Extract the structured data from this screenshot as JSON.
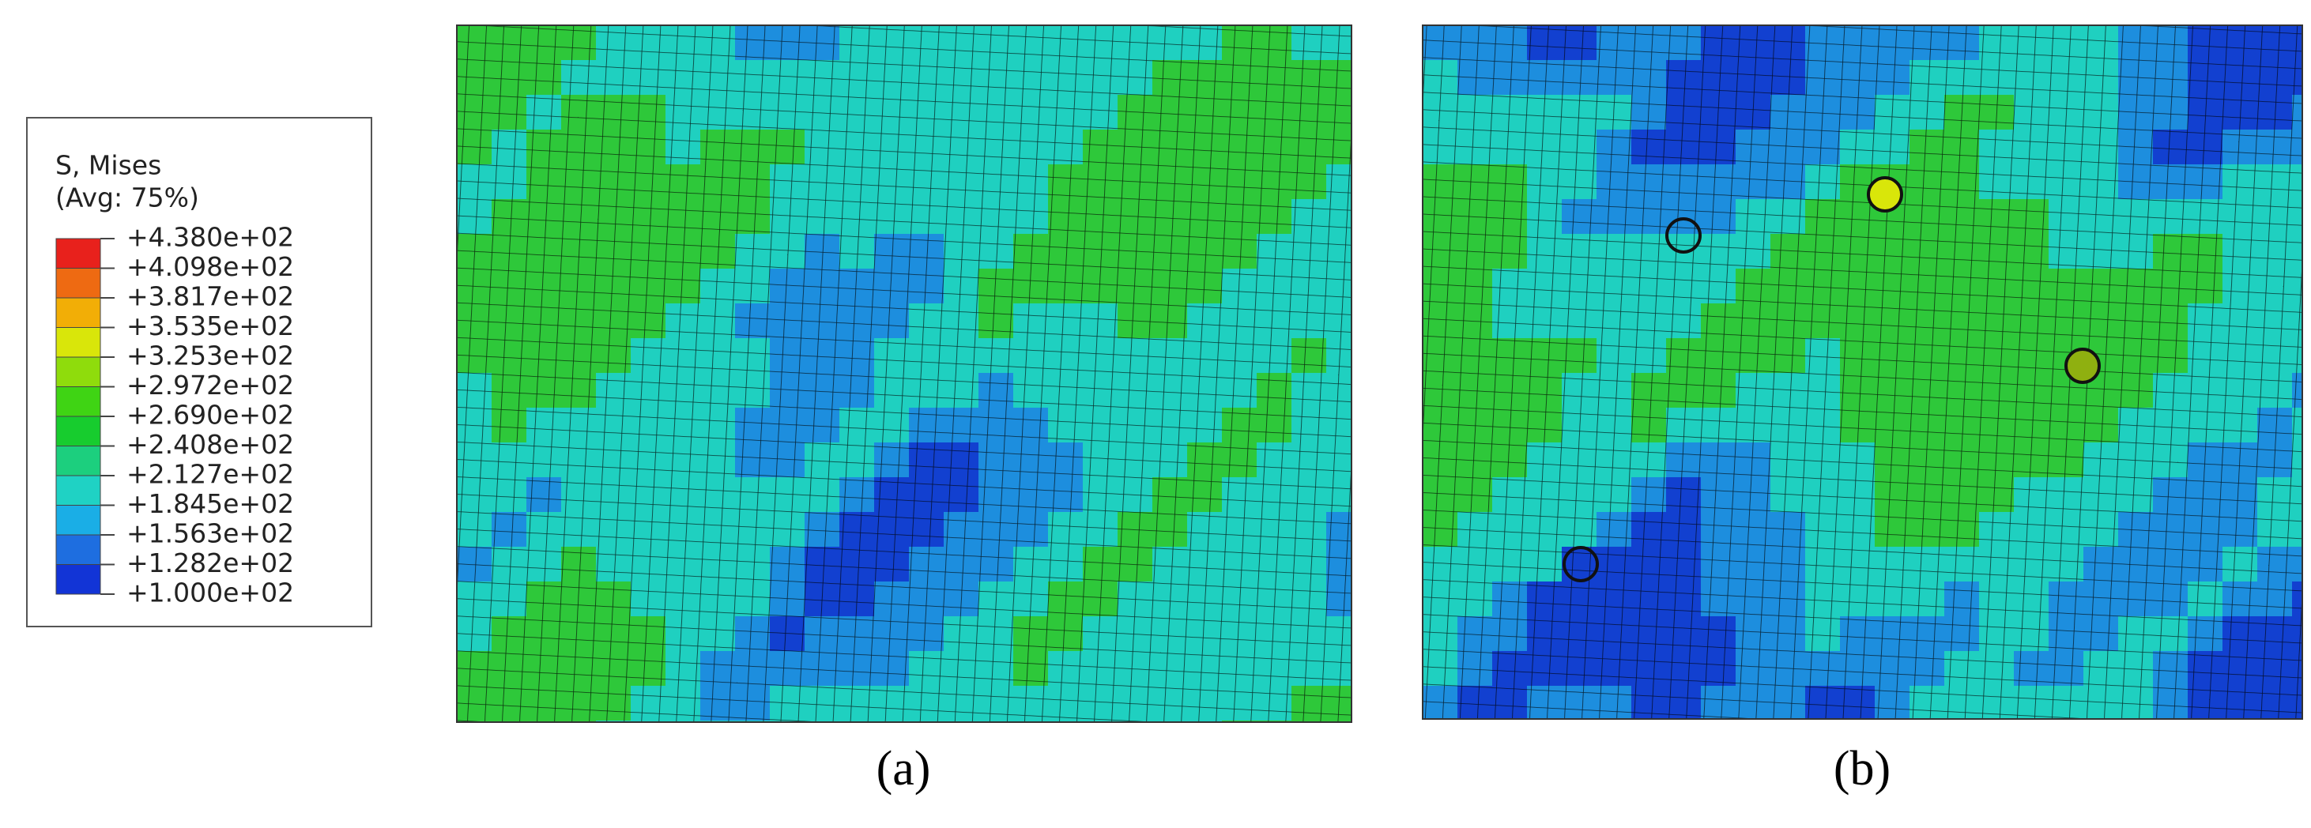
{
  "legend": {
    "title": "S, Mises",
    "subtitle": "(Avg: 75%)",
    "labels": [
      "+4.380e+02",
      "+4.098e+02",
      "+3.817e+02",
      "+3.535e+02",
      "+3.253e+02",
      "+2.972e+02",
      "+2.690e+02",
      "+2.408e+02",
      "+2.127e+02",
      "+1.845e+02",
      "+1.563e+02",
      "+1.282e+02",
      "+1.000e+02"
    ],
    "colors": [
      "#e8211c",
      "#ee6a12",
      "#f2ae06",
      "#d9e60a",
      "#8fdc0c",
      "#3fd414",
      "#17cc2e",
      "#1ccf7e",
      "#1fd2c4",
      "#1aaee6",
      "#1e6ee0",
      "#1234d6"
    ]
  },
  "panels": [
    {
      "caption": "(a)"
    },
    {
      "caption": "(b)"
    }
  ]
}
